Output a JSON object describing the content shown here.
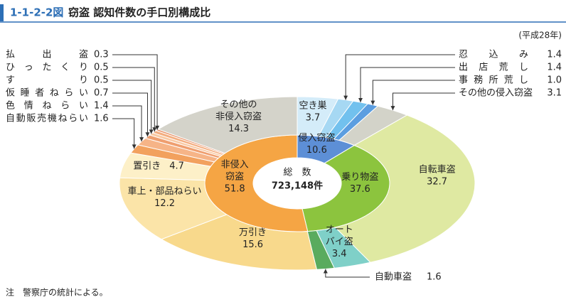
{
  "chart_data": {
    "type": "nested-donut",
    "figure_number": "1-1-2-2図",
    "title": "窃盗 認知件数の手口別構成比",
    "subtitle": "(平成28年)",
    "center_text": [
      "総　数",
      "723,148件"
    ],
    "footnote": "注　警察庁の統計による。",
    "inner": {
      "categories": [
        "侵入窃盗",
        "乗り物盗",
        [
          "非侵入",
          "窃盗"
        ]
      ],
      "values": [
        10.6,
        37.6,
        51.8
      ],
      "colors": [
        "#5d8fd6",
        "#8cc43e",
        "#f5a544"
      ]
    },
    "outer": {
      "categories": [
        "空き巣",
        "忍込み",
        "出店荒し",
        "事務所荒し",
        "その他の侵入窃盗",
        "自転車盗",
        [
          "オート",
          "バイ盗"
        ],
        "自動車盗",
        "万引き",
        "車上・部品ねらい",
        "置引き",
        "自動販売機ねらい",
        "色情ねらい",
        "仮睡者ねらい",
        "すり",
        "ひったくり",
        "払出盗",
        [
          "その他の",
          "非侵入窃盗"
        ]
      ],
      "values": [
        3.7,
        1.4,
        1.4,
        1.0,
        3.1,
        32.7,
        3.4,
        1.6,
        15.6,
        12.2,
        4.7,
        1.6,
        1.4,
        0.7,
        0.5,
        0.5,
        0.3,
        14.3
      ],
      "value_labels": [
        "3.7",
        "1.4",
        "1.4",
        "1.0",
        "3.1",
        "32.7",
        "3.4",
        "1.6",
        "15.6",
        "12.2",
        "4.7",
        "1.6",
        "1.4",
        "0.7",
        "0.5",
        "0.5",
        "0.3",
        "14.3"
      ],
      "colors": [
        "#d4ecf9",
        "#a6d8f3",
        "#72c1ee",
        "#5c9ee0",
        "#d3d3c9",
        "#dfe9a2",
        "#7fd0c8",
        "#5aab5e",
        "#f8d98c",
        "#fbe4a8",
        "#fdf0c8",
        "#f2a15e",
        "#f6b487",
        "#ef9f70",
        "#f9caa4",
        "#f4ae80",
        "#e8946a",
        "#d4d3ca"
      ]
    }
  }
}
